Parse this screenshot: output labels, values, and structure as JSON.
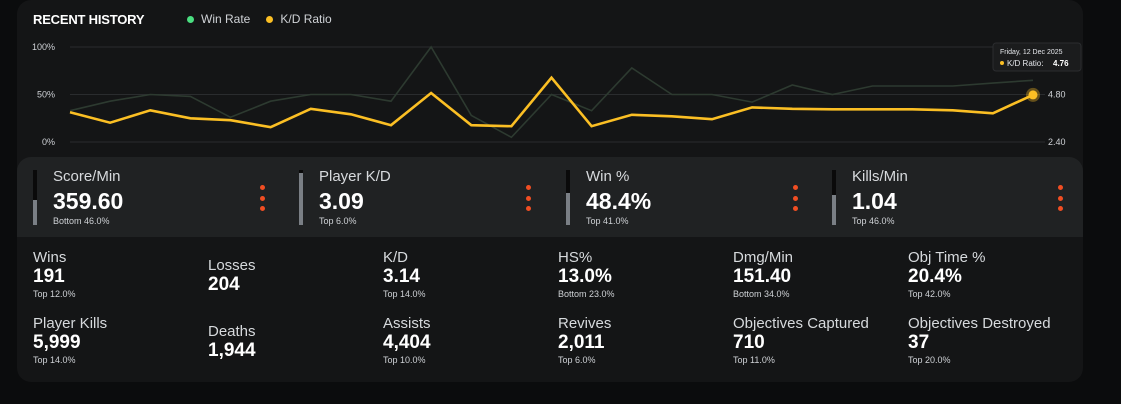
{
  "header": {
    "title": "RECENT HISTORY",
    "legend": [
      {
        "label": "Win Rate",
        "color": "#4ade80"
      },
      {
        "label": "K/D Ratio",
        "color": "#fbbf24"
      }
    ]
  },
  "chart_data": {
    "type": "line",
    "x": [
      1,
      2,
      3,
      4,
      5,
      6,
      7,
      8,
      9,
      10,
      11,
      12,
      13,
      14,
      15,
      16,
      17,
      18,
      19,
      20,
      21,
      22,
      23,
      24,
      25
    ],
    "series": [
      {
        "name": "Win Rate",
        "color": "#2d3a30",
        "axis": "left",
        "values": [
          33,
          43,
          50,
          48,
          26,
          43,
          50,
          50,
          43,
          100,
          28,
          5,
          50,
          33,
          78,
          50,
          50,
          42,
          60,
          50,
          59,
          59,
          59,
          62,
          65
        ]
      },
      {
        "name": "K/D Ratio",
        "color": "#fbbf24",
        "axis": "right",
        "values": [
          3.0,
          1.95,
          3.2,
          2.4,
          2.2,
          1.5,
          3.35,
          2.8,
          1.7,
          4.95,
          1.7,
          1.6,
          6.5,
          1.6,
          2.75,
          2.6,
          2.3,
          3.5,
          3.35,
          3.3,
          3.3,
          3.3,
          3.2,
          2.9,
          4.76
        ]
      }
    ],
    "y_left": {
      "ticks": [
        "100%",
        "50%",
        "0%"
      ],
      "range": [
        0,
        100
      ]
    },
    "y_right": {
      "ticks": [
        "4.80",
        "2.40"
      ],
      "range": [
        0,
        9.6
      ]
    },
    "tooltip": {
      "date": "Friday, 12 Dec 2025",
      "label": "K/D Ratio:",
      "value": "4.76"
    }
  },
  "top_stats": [
    {
      "label": "Score/Min",
      "value": "359.60",
      "sub": "Bottom 46.0%",
      "fill_pct": 46
    },
    {
      "label": "Player K/D",
      "value": "3.09",
      "sub": "Top 6.0%",
      "fill_pct": 94
    },
    {
      "label": "Win %",
      "value": "48.4%",
      "sub": "Top 41.0%",
      "fill_pct": 59
    },
    {
      "label": "Kills/Min",
      "value": "1.04",
      "sub": "Top 46.0%",
      "fill_pct": 54
    }
  ],
  "grid_stats": [
    {
      "label": "Wins",
      "value": "191",
      "sub": "Top 12.0%"
    },
    {
      "label": "Losses",
      "value": "204",
      "sub": ""
    },
    {
      "label": "K/D",
      "value": "3.14",
      "sub": "Top 14.0%"
    },
    {
      "label": "HS%",
      "value": "13.0%",
      "sub": "Bottom 23.0%"
    },
    {
      "label": "Dmg/Min",
      "value": "151.40",
      "sub": "Bottom 34.0%"
    },
    {
      "label": "Obj Time %",
      "value": "20.4%",
      "sub": "Top 42.0%"
    },
    {
      "label": "Player Kills",
      "value": "5,999",
      "sub": "Top 14.0%"
    },
    {
      "label": "Deaths",
      "value": "1,944",
      "sub": ""
    },
    {
      "label": "Assists",
      "value": "4,404",
      "sub": "Top 10.0%"
    },
    {
      "label": "Revives",
      "value": "2,011",
      "sub": "Top 6.0%"
    },
    {
      "label": "Objectives Captured",
      "value": "710",
      "sub": "Top 11.0%"
    },
    {
      "label": "Objectives Destroyed",
      "value": "37",
      "sub": "Top 20.0%"
    }
  ]
}
